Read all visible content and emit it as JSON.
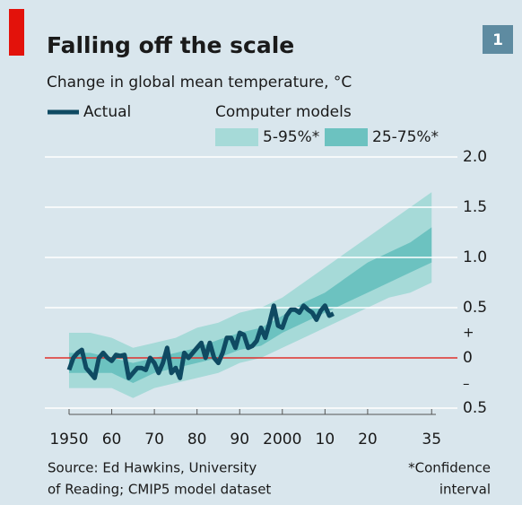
{
  "chart_data": {
    "type": "line",
    "title": "Falling off the scale",
    "badge": "1",
    "subtitle": "Change in global mean temperature, °C",
    "models_heading": "Computer models",
    "xlim": [
      1950,
      2036
    ],
    "ylim": [
      -0.5,
      2.0
    ],
    "yticks": [
      {
        "value": -0.5,
        "label": "0.5"
      },
      0,
      0.5,
      {
        "value": 1,
        "label": "1.0"
      },
      1.5,
      {
        "value": 2,
        "label": "2.0"
      }
    ],
    "xticks": [
      1950,
      {
        "value": 1960,
        "label": "60"
      },
      {
        "value": 1970,
        "label": "70"
      },
      {
        "value": 1980,
        "label": "80"
      },
      {
        "value": 1990,
        "label": "90"
      },
      2000,
      {
        "value": 2010,
        "label": "10"
      },
      {
        "value": 2020,
        "label": "20"
      },
      {
        "value": 2035,
        "label": "35"
      }
    ],
    "sign_labels": [
      "+",
      "–"
    ],
    "zero_line_color": "#e0302d",
    "grid": true,
    "bands": [
      {
        "name": "5-95%*",
        "color": "#a6dad8",
        "x": [
          1950,
          1955,
          1960,
          1965,
          1970,
          1975,
          1980,
          1985,
          1990,
          1995,
          2000,
          2005,
          2010,
          2015,
          2020,
          2025,
          2030,
          2035
        ],
        "lower": [
          -0.3,
          -0.3,
          -0.3,
          -0.4,
          -0.3,
          -0.25,
          -0.2,
          -0.15,
          -0.05,
          0.0,
          0.1,
          0.2,
          0.3,
          0.4,
          0.5,
          0.6,
          0.65,
          0.75
        ],
        "upper": [
          0.25,
          0.25,
          0.2,
          0.1,
          0.15,
          0.2,
          0.3,
          0.35,
          0.45,
          0.5,
          0.6,
          0.75,
          0.9,
          1.05,
          1.2,
          1.35,
          1.5,
          1.65
        ]
      },
      {
        "name": "25-75%*",
        "color": "#6cc2c0",
        "x": [
          1950,
          1955,
          1960,
          1965,
          1970,
          1975,
          1980,
          1985,
          1990,
          1995,
          2000,
          2005,
          2010,
          2015,
          2020,
          2025,
          2030,
          2035
        ],
        "lower": [
          -0.15,
          -0.15,
          -0.15,
          -0.25,
          -0.15,
          -0.1,
          -0.05,
          0.0,
          0.08,
          0.12,
          0.25,
          0.35,
          0.45,
          0.55,
          0.65,
          0.75,
          0.85,
          0.95
        ],
        "upper": [
          0.05,
          0.05,
          0.0,
          -0.05,
          0.0,
          0.05,
          0.1,
          0.18,
          0.25,
          0.3,
          0.42,
          0.55,
          0.65,
          0.8,
          0.95,
          1.05,
          1.15,
          1.3
        ]
      }
    ],
    "series": [
      {
        "name": "Actual",
        "color": "#0f4a62",
        "x": [
          1950,
          1951,
          1952,
          1953,
          1954,
          1955,
          1956,
          1957,
          1958,
          1959,
          1960,
          1961,
          1962,
          1963,
          1964,
          1965,
          1966,
          1967,
          1968,
          1969,
          1970,
          1971,
          1972,
          1973,
          1974,
          1975,
          1976,
          1977,
          1978,
          1979,
          1980,
          1981,
          1982,
          1983,
          1984,
          1985,
          1986,
          1987,
          1988,
          1989,
          1990,
          1991,
          1992,
          1993,
          1994,
          1995,
          1996,
          1997,
          1998,
          1999,
          2000,
          2001,
          2002,
          2003,
          2004,
          2005,
          2006,
          2007,
          2008,
          2009,
          2010,
          2011,
          2012
        ],
        "values": [
          -0.12,
          0.0,
          0.05,
          0.08,
          -0.1,
          -0.15,
          -0.2,
          0.0,
          0.05,
          0.0,
          -0.03,
          0.03,
          0.02,
          0.03,
          -0.2,
          -0.15,
          -0.1,
          -0.1,
          -0.12,
          0.0,
          -0.05,
          -0.15,
          -0.05,
          0.1,
          -0.15,
          -0.1,
          -0.2,
          0.05,
          0.0,
          0.05,
          0.1,
          0.15,
          0.0,
          0.15,
          0.0,
          -0.05,
          0.05,
          0.2,
          0.2,
          0.1,
          0.25,
          0.23,
          0.1,
          0.12,
          0.17,
          0.3,
          0.2,
          0.35,
          0.52,
          0.32,
          0.3,
          0.42,
          0.48,
          0.48,
          0.45,
          0.52,
          0.48,
          0.45,
          0.38,
          0.47,
          0.52,
          0.42,
          0.44
        ]
      }
    ],
    "source": [
      "Source: Ed Hawkins, University",
      "of Reading; CMIP5 model dataset"
    ],
    "note": [
      "*Confidence",
      "interval"
    ]
  }
}
